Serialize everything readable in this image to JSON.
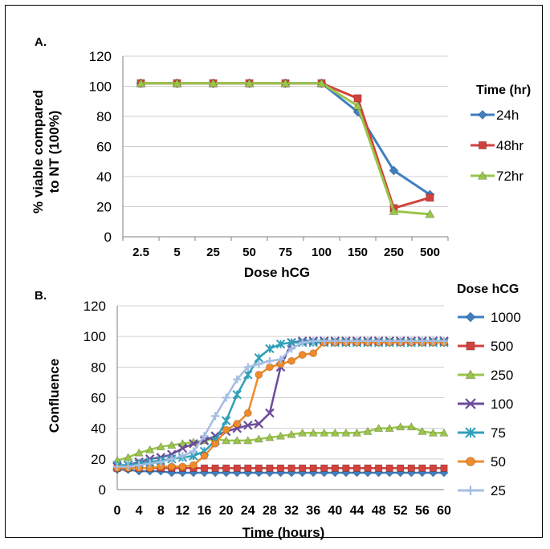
{
  "colors": {
    "blue": "#3f7fc1",
    "red": "#d2423c",
    "green": "#9bc54a",
    "purple": "#6b4c9a",
    "teal": "#2fa0b8",
    "orange": "#f08a2a",
    "lightblue": "#a4bde3"
  },
  "chart_data": [
    {
      "panel_label": "A.",
      "type": "line",
      "categories": [
        "2.5",
        "5",
        "25",
        "50",
        "75",
        "100",
        "150",
        "250",
        "500"
      ],
      "ylabel_line1": "% viable compared",
      "ylabel_line2": "to NT (100%)",
      "xlabel": "Dose hCG",
      "ylim": [
        0,
        120
      ],
      "yticks": [
        "0",
        "20",
        "40",
        "60",
        "80",
        "100",
        "120"
      ],
      "legend_title": "Time (hr)",
      "legend_position": "right",
      "grid": "horizontal",
      "series": [
        {
          "name": "24h",
          "color_key": "blue",
          "marker": "diamond",
          "values": [
            102,
            102,
            102,
            102,
            102,
            102,
            83,
            44,
            28
          ]
        },
        {
          "name": "48hr",
          "color_key": "red",
          "marker": "square",
          "values": [
            102,
            102,
            102,
            102,
            102,
            102,
            92,
            19,
            26
          ]
        },
        {
          "name": "72hr",
          "color_key": "green",
          "marker": "triangle",
          "values": [
            102,
            102,
            102,
            102,
            102,
            102,
            87,
            17,
            15
          ]
        }
      ]
    },
    {
      "panel_label": "B.",
      "type": "line",
      "x": [
        0,
        2,
        4,
        6,
        8,
        10,
        12,
        14,
        16,
        18,
        20,
        22,
        24,
        26,
        28,
        30,
        32,
        34,
        36,
        38,
        40,
        42,
        44,
        46,
        48,
        50,
        52,
        54,
        56,
        58,
        60
      ],
      "xticks": [
        "0",
        "4",
        "8",
        "12",
        "16",
        "20",
        "24",
        "28",
        "32",
        "36",
        "40",
        "44",
        "48",
        "52",
        "56",
        "60"
      ],
      "ylabel": "Confluence",
      "xlabel": "Time (hours)",
      "ylim": [
        0,
        120
      ],
      "yticks": [
        "0",
        "20",
        "40",
        "60",
        "80",
        "100",
        "120"
      ],
      "legend_title": "Dose hCG",
      "legend_position": "right",
      "grid": "horizontal",
      "series": [
        {
          "name": "1000",
          "color_key": "blue",
          "marker": "diamond",
          "values": [
            13,
            13,
            12,
            12,
            12,
            11,
            11,
            11,
            11,
            11,
            11,
            11,
            11,
            11,
            11,
            11,
            11,
            11,
            11,
            11,
            11,
            11,
            11,
            11,
            11,
            11,
            11,
            11,
            11,
            11,
            11
          ]
        },
        {
          "name": "500",
          "color_key": "red",
          "marker": "square",
          "values": [
            14,
            14,
            14,
            14,
            14,
            14,
            14,
            14,
            14,
            14,
            14,
            14,
            14,
            14,
            14,
            14,
            14,
            14,
            14,
            14,
            14,
            14,
            14,
            14,
            14,
            14,
            14,
            14,
            14,
            14,
            14
          ]
        },
        {
          "name": "250",
          "color_key": "green",
          "marker": "triangle",
          "values": [
            19,
            21,
            24,
            26,
            28,
            29,
            30,
            31,
            32,
            33,
            32,
            32,
            32,
            33,
            34,
            35,
            36,
            37,
            37,
            37,
            37,
            37,
            37,
            38,
            40,
            40,
            41,
            41,
            38,
            37,
            37
          ]
        },
        {
          "name": "100",
          "color_key": "purple",
          "marker": "x",
          "values": [
            15,
            16,
            18,
            20,
            21,
            23,
            27,
            30,
            32,
            35,
            38,
            40,
            42,
            43,
            50,
            80,
            96,
            97,
            97,
            97,
            97,
            97,
            97,
            97,
            97,
            97,
            97,
            97,
            97,
            97,
            97
          ]
        },
        {
          "name": "75",
          "color_key": "teal",
          "marker": "asterisk",
          "values": [
            16,
            16,
            17,
            18,
            19,
            20,
            21,
            22,
            25,
            32,
            45,
            62,
            75,
            86,
            92,
            95,
            96,
            96,
            96,
            96,
            96,
            96,
            96,
            96,
            96,
            96,
            96,
            96,
            96,
            96,
            96
          ]
        },
        {
          "name": "50",
          "color_key": "orange",
          "marker": "circle",
          "values": [
            14,
            14,
            14,
            14,
            15,
            15,
            15,
            16,
            22,
            30,
            39,
            43,
            50,
            75,
            80,
            82,
            84,
            88,
            89,
            96,
            96,
            96,
            96,
            96,
            96,
            96,
            96,
            96,
            96,
            96,
            96
          ]
        },
        {
          "name": "25",
          "color_key": "lightblue",
          "marker": "plus",
          "values": [
            15,
            15,
            16,
            17,
            18,
            20,
            22,
            25,
            35,
            48,
            60,
            72,
            80,
            82,
            84,
            85,
            92,
            96,
            97,
            97,
            97,
            97,
            97,
            97,
            97,
            97,
            97,
            97,
            97,
            97,
            97
          ]
        }
      ]
    }
  ]
}
